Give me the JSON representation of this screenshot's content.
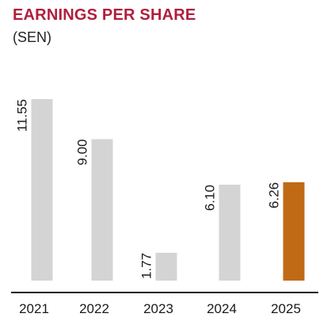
{
  "chart_data": {
    "type": "bar",
    "title": "EARNINGS PER SHARE",
    "subtitle": "(SEN)",
    "categories": [
      "2021",
      "2022",
      "2023",
      "2024",
      "2025"
    ],
    "values": [
      11.55,
      9.0,
      1.77,
      6.1,
      6.26
    ],
    "value_labels": [
      "11.55",
      "9.00",
      "1.77",
      "6.10",
      "6.26"
    ],
    "ylim": [
      0,
      11.55
    ],
    "grid": false,
    "legend": "none",
    "colors": {
      "title": "#b01f3c",
      "bar": "#d4d4d4",
      "highlight_bar": "#c06a15",
      "axis": "#1a1a1a"
    },
    "highlight_index": 4
  }
}
